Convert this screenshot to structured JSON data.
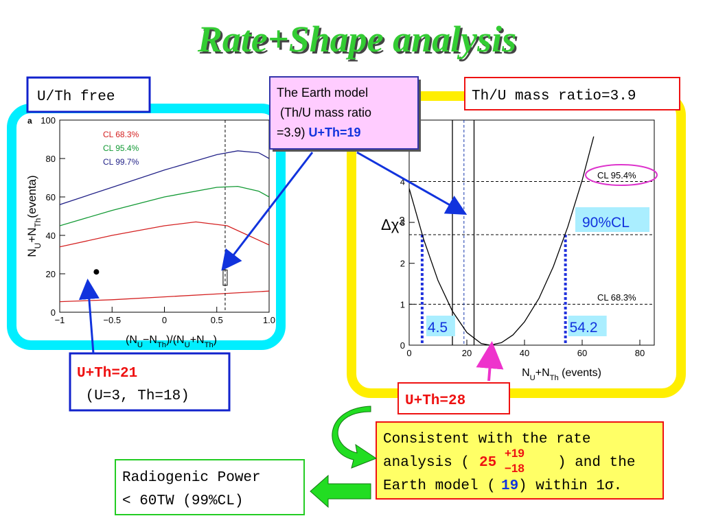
{
  "title": "Rate+Shape analysis",
  "left_label": "U/Th free",
  "earth_model": [
    "The Earth model",
    " (Th/U mass ratio",
    "=3.9) ",
    "U+Th=19"
  ],
  "ratio_label": "Th/U mass ratio=3.9",
  "point_label": [
    "U+Th=21",
    " (U=3, Th=18)"
  ],
  "best_label": "U+Th=28",
  "consistent": [
    "Consistent with the rate",
    "analysis (",
    "25",
    "+19",
    "−18",
    ") and the",
    "Earth model (",
    "19",
    ") within 1σ."
  ],
  "conclusion": [
    "Radiogenic Power",
    "< 60TW (99%CL)"
  ],
  "chart_data": [
    {
      "type": "line",
      "panel_label": "a",
      "x_label": [
        "(N",
        "U",
        "−N",
        "Th",
        ")/(N",
        "U",
        "+N",
        "Th",
        ")"
      ],
      "y_label": [
        "N",
        "U",
        "+N",
        "Th",
        "(eventa)"
      ],
      "xlim": [
        -1,
        1
      ],
      "ylim": [
        0,
        100
      ],
      "xticks": [
        {
          "value": -1,
          "label": "−1"
        },
        {
          "value": -0.5,
          "label": "−0.5"
        },
        0,
        0.5,
        {
          "value": 1,
          "label": "1.0"
        }
      ],
      "yticks": [
        0,
        20,
        40,
        60,
        80,
        100
      ],
      "series": [
        {
          "name": "CL 68.3%",
          "color": "#d42020",
          "x": [
            -1,
            -0.5,
            0,
            0.3,
            0.6,
            0.8,
            1
          ],
          "values": [
            34,
            40,
            45,
            47,
            45,
            40,
            35
          ],
          "lower": {
            "x": [
              -1,
              -0.5,
              0,
              0.5,
              1
            ],
            "values": [
              5.5,
              6.5,
              8,
              9.5,
              11
            ]
          }
        },
        {
          "name": "CL 95.4%",
          "color": "#119933",
          "x": [
            -1,
            -0.5,
            0,
            0.5,
            0.7,
            0.9,
            1
          ],
          "values": [
            45,
            53,
            60,
            65,
            65.5,
            63,
            60
          ]
        },
        {
          "name": "CL 99.7%",
          "color": "#222288",
          "x": [
            -1,
            -0.5,
            0,
            0.5,
            0.7,
            0.9,
            1
          ],
          "values": [
            56,
            65,
            74,
            82,
            84,
            83,
            80
          ]
        }
      ],
      "points": [
        {
          "x": -0.65,
          "y": 21
        }
      ],
      "marker_x": 0.58
    },
    {
      "type": "line",
      "x_label": [
        "N",
        "U",
        "+N",
        "Th",
        " (events)"
      ],
      "y_label": [
        "Δχ",
        "2"
      ],
      "xlim": [
        0,
        85
      ],
      "ylim": [
        0,
        5.5
      ],
      "xticks": [
        0,
        20,
        40,
        60,
        80
      ],
      "yticks": [
        0,
        1,
        2,
        3,
        4
      ],
      "series": [
        {
          "color": "#000000",
          "x": [
            0,
            5,
            10,
            15,
            20,
            25,
            28,
            32,
            36,
            40,
            45,
            50,
            55,
            60,
            64
          ],
          "values": [
            3.83,
            2.59,
            1.58,
            0.83,
            0.31,
            0.04,
            0,
            0.06,
            0.25,
            0.57,
            1.14,
            1.92,
            2.89,
            4.03,
            5.1
          ]
        }
      ],
      "cl_lines": [
        {
          "value": 4,
          "label": "CL 95.4%"
        },
        {
          "value": 2.7,
          "label": "90%CL"
        },
        {
          "value": 1,
          "label": "CL 68.3%"
        }
      ],
      "interval": [
        4.5,
        54.2
      ],
      "band": [
        15,
        22.5
      ],
      "model": 19
    }
  ]
}
